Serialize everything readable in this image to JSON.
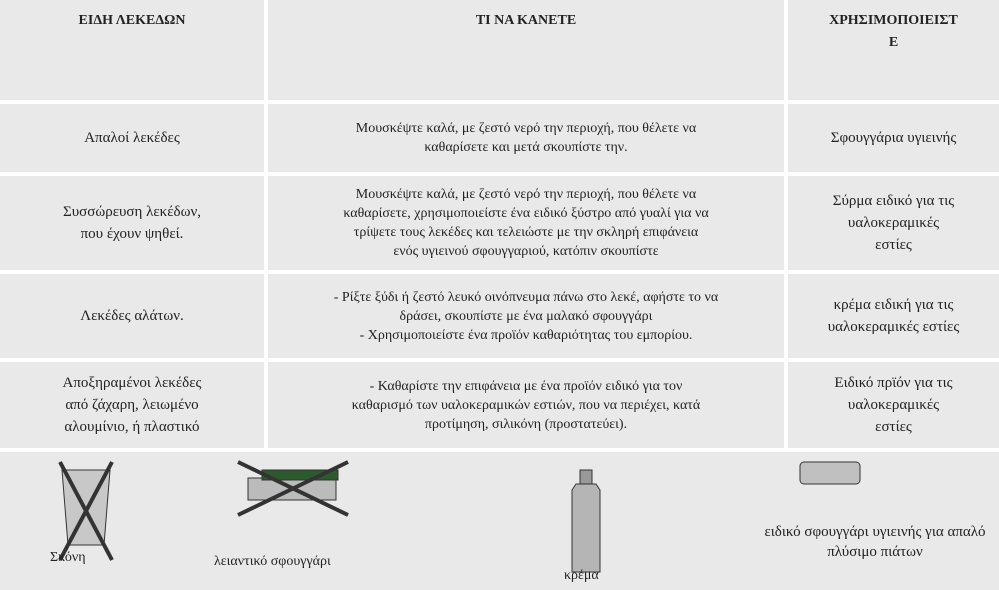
{
  "header": {
    "columns": [
      [
        "ΕΙΔΗ ΛΕΚΕΔΩΝ"
      ],
      [
        "ΤΙ ΝΑ ΚΑΝΕΤΕ"
      ],
      [
        "ΧΡΗΣΙΜΟΠΟΙΕΙΣΤ",
        "Ε"
      ]
    ]
  },
  "rows": [
    [
      [
        "Απαλοί λεκέδες"
      ],
      [
        "Μουσκέψτε καλά, με ζεστό νερό την περιοχή, που θέλετε να",
        "καθαρίσετε και μετά σκουπίστε την."
      ],
      [
        "Σφουγγάρια υγιεινής"
      ]
    ],
    [
      [
        "Συσσώρευση λεκέδων,",
        "που έχουν ψηθεί."
      ],
      [
        "Μουσκέψτε καλά, με ζεστό νερό την περιοχή, που θέλετε να",
        "καθαρίσετε, χρησιμοποιείστε ένα ειδικό ξύστρο από γυαλί για να",
        "τρίψετε τους λεκέδες και τελειώστε με την σκληρή επιφάνεια",
        "ενός υγιεινού σφουγγαριού, κατόπιν σκουπίστε"
      ],
      [
        "Σύρμα ειδικό για τις",
        "υαλοκεραμικές",
        "εστίες"
      ]
    ],
    [
      [
        "Λεκέδες αλάτων."
      ],
      [
        "- Ρίξτε ξύδι ή ζεστό λευκό οινόπνευμα πάνω στο λεκέ, αφήστε το να",
        "δράσει, σκουπίστε με ένα μαλακό σφουγγάρι",
        "- Χρησιμοποιείστε ένα προϊόν καθαριότητας του εμπορίου."
      ],
      [
        "κρέμα ειδική για τις",
        "υαλοκεραμικές εστίες"
      ]
    ],
    [
      [
        "Αποξηραμένοι λεκέδες",
        "από ζάχαρη, λειωμένο",
        "αλουμίνιο, ή πλαστικό"
      ],
      [
        "- Καθαρίστε την επιφάνεια με ένα προϊόν ειδικό για τον",
        "καθαρισμό των υαλοκεραμικών εστιών, που να περιέχει, κατά",
        "προτίμηση, σιλικόνη (προστατεύει)."
      ],
      [
        "Ειδικό πρϊόν για τις",
        "υαλοκεραμικές",
        "εστίες"
      ]
    ]
  ],
  "illustrations": [
    [
      "Σκόνη"
    ],
    [
      "λειαντικό σφουγγάρι"
    ],
    [
      "κρέμα"
    ],
    [
      "ειδικό σφουγγάρι υγιεινής για απαλό",
      "πλύσιμο πιάτων"
    ]
  ]
}
